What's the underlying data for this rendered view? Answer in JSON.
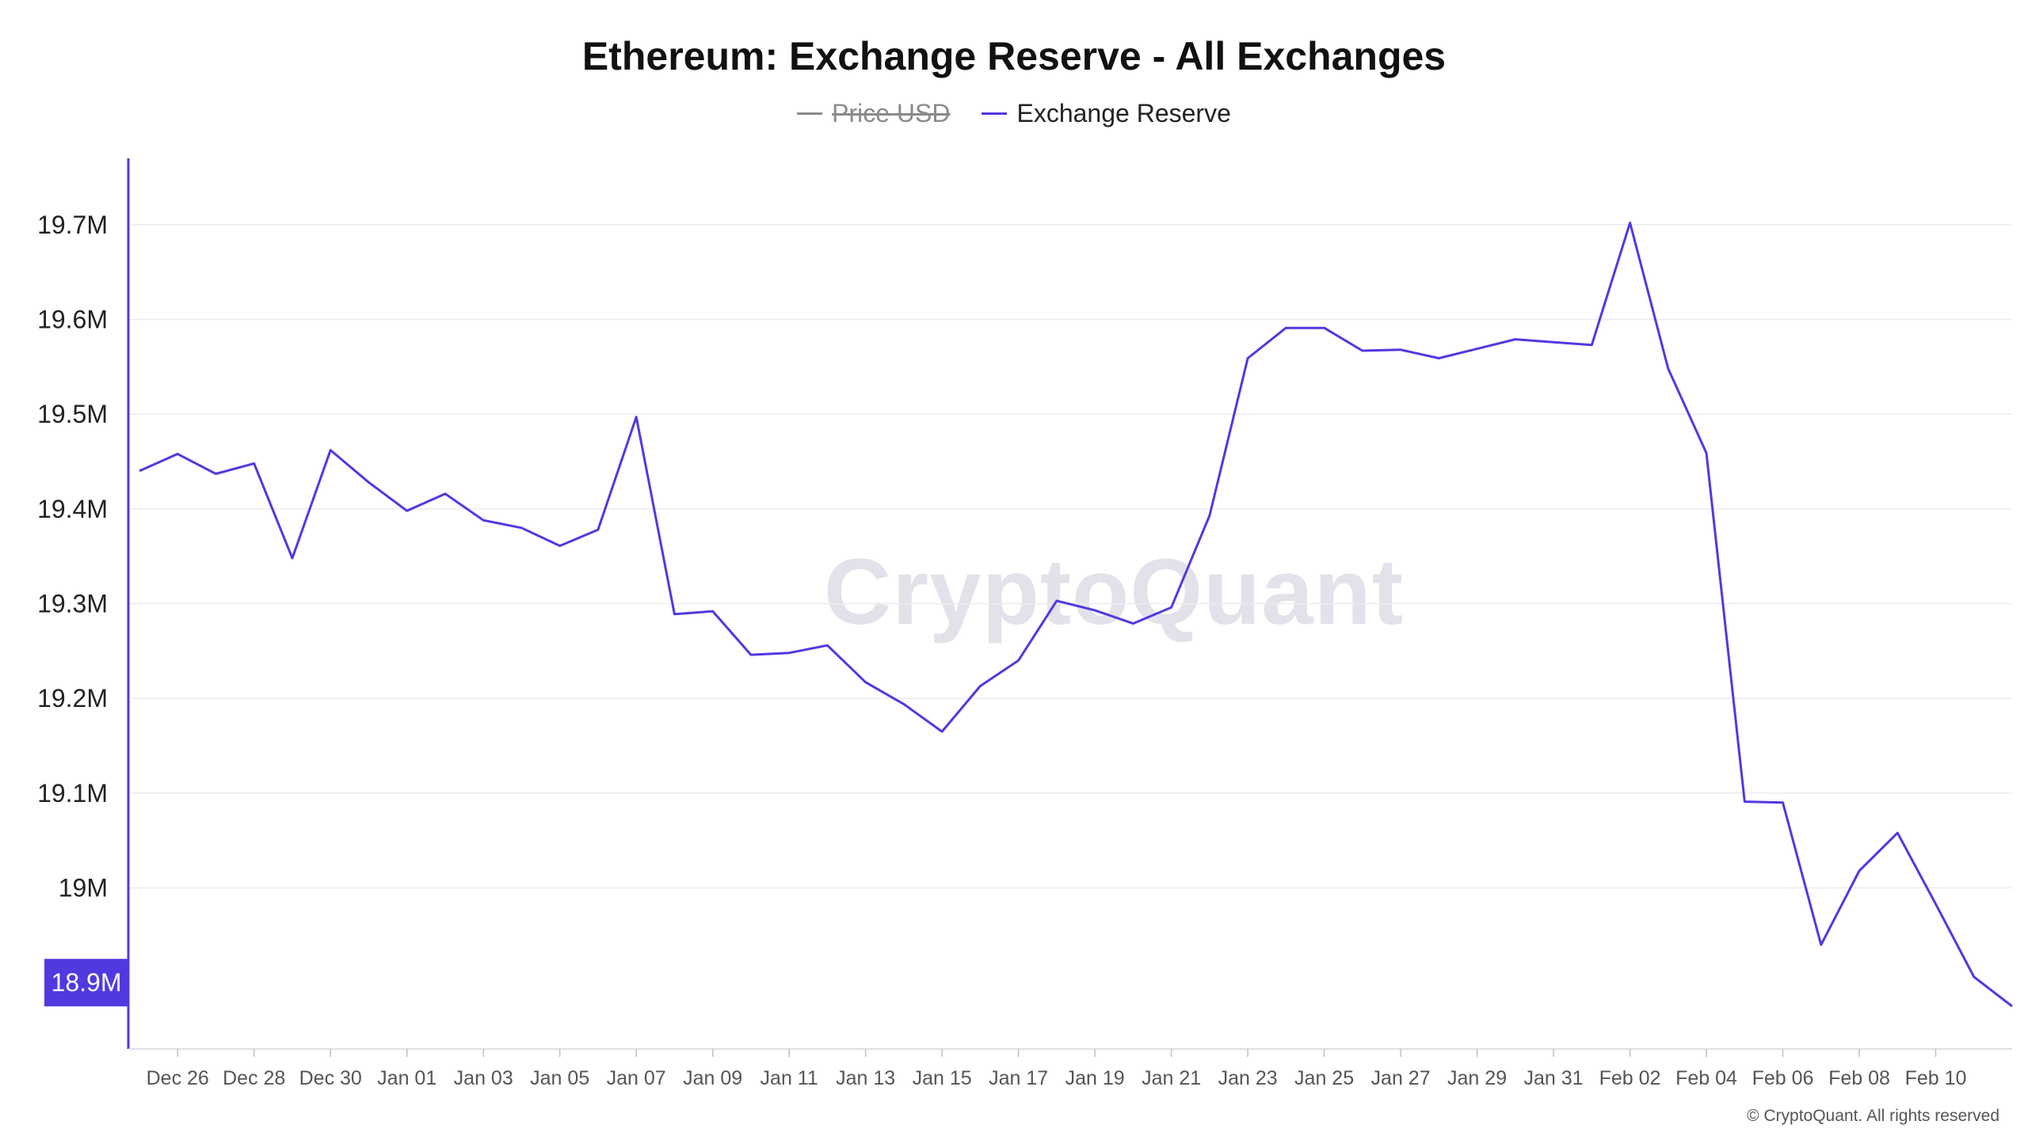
{
  "chart_data": {
    "type": "line",
    "title": "Ethereum: Exchange Reserve - All Exchanges",
    "legend": [
      {
        "name": "Price USD",
        "color": "#8a8a8a",
        "hidden": true
      },
      {
        "name": "Exchange Reserve",
        "color": "#4f3ae0",
        "hidden": false
      }
    ],
    "ylim": [
      18.83,
      19.77
    ],
    "y_ticks": [
      {
        "value": 19.7,
        "label": "19.7M"
      },
      {
        "value": 19.6,
        "label": "19.6M"
      },
      {
        "value": 19.5,
        "label": "19.5M"
      },
      {
        "value": 19.4,
        "label": "19.4M"
      },
      {
        "value": 19.3,
        "label": "19.3M"
      },
      {
        "value": 19.2,
        "label": "19.2M"
      },
      {
        "value": 19.1,
        "label": "19.1M"
      },
      {
        "value": 19.0,
        "label": "19M"
      }
    ],
    "current_value_label": {
      "value": 18.9,
      "label": "18.9M"
    },
    "x_ticks": [
      "Dec 26",
      "Dec 28",
      "Dec 30",
      "Jan 01",
      "Jan 03",
      "Jan 05",
      "Jan 07",
      "Jan 09",
      "Jan 11",
      "Jan 13",
      "Jan 15",
      "Jan 17",
      "Jan 19",
      "Jan 21",
      "Jan 23",
      "Jan 25",
      "Jan 27",
      "Jan 29",
      "Jan 31",
      "Feb 02",
      "Feb 04",
      "Feb 06",
      "Feb 08",
      "Feb 10"
    ],
    "x": [
      "2024-12-25",
      "2024-12-26",
      "2024-12-27",
      "2024-12-28",
      "2024-12-29",
      "2024-12-30",
      "2024-12-31",
      "2025-01-01",
      "2025-01-02",
      "2025-01-03",
      "2025-01-04",
      "2025-01-05",
      "2025-01-06",
      "2025-01-07",
      "2025-01-08",
      "2025-01-09",
      "2025-01-10",
      "2025-01-11",
      "2025-01-12",
      "2025-01-13",
      "2025-01-14",
      "2025-01-15",
      "2025-01-16",
      "2025-01-17",
      "2025-01-18",
      "2025-01-19",
      "2025-01-20",
      "2025-01-21",
      "2025-01-22",
      "2025-01-23",
      "2025-01-24",
      "2025-01-25",
      "2025-01-26",
      "2025-01-27",
      "2025-01-28",
      "2025-01-29",
      "2025-01-30",
      "2025-01-31",
      "2025-02-01",
      "2025-02-02",
      "2025-02-03",
      "2025-02-04",
      "2025-02-05",
      "2025-02-06",
      "2025-02-07",
      "2025-02-08",
      "2025-02-09",
      "2025-02-10",
      "2025-02-11",
      "2025-02-12"
    ],
    "series": [
      {
        "name": "Exchange Reserve",
        "color": "#4f3ae0",
        "values": [
          19.44,
          19.458,
          19.437,
          19.448,
          19.348,
          19.462,
          19.428,
          19.398,
          19.416,
          19.388,
          19.38,
          19.361,
          19.378,
          19.497,
          19.289,
          19.292,
          19.246,
          19.248,
          19.256,
          19.217,
          19.194,
          19.165,
          19.213,
          19.24,
          19.303,
          19.293,
          19.279,
          19.296,
          19.393,
          19.559,
          19.591,
          19.591,
          19.567,
          19.568,
          19.559,
          19.569,
          19.579,
          19.576,
          19.573,
          19.702,
          19.548,
          19.459,
          19.091,
          19.09,
          18.94,
          19.018,
          19.058,
          18.983,
          18.906,
          18.875
        ]
      }
    ],
    "grid": "horizontal"
  },
  "watermark": "CryptoQuant",
  "copyright": "© CryptoQuant. All rights reserved"
}
